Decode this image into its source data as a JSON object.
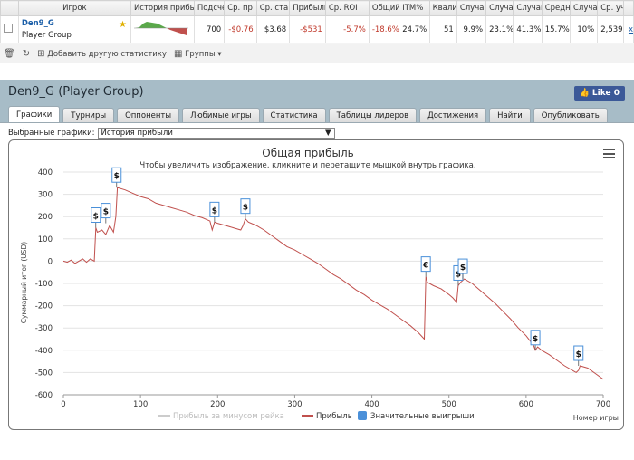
{
  "grid": {
    "headers": [
      "Игрок",
      "История прибыли",
      "Подсчет",
      "Ср. пр",
      "Ср. ста",
      "Прибыль",
      "Ср. ROI",
      "Общий",
      "ITM%",
      "Квали",
      "Случаи",
      "Случа",
      "Случаи",
      "Средн",
      "Случаи",
      "Ср. уч"
    ],
    "row": {
      "player_name": "Den9_G",
      "player_group": "Player Group",
      "count": "700",
      "avg_profit": "-$0.76",
      "avg_stake": "$3.68",
      "profit": "-$531",
      "avg_roi": "-5.7%",
      "total_roi": "-18.6%",
      "itm": "24.7%",
      "quali": "51",
      "c1": "9.9%",
      "c2": "23.1%",
      "c3": "41.3%",
      "avg2": "15.7%",
      "c4": "10%",
      "avg_entrants": "2,539",
      "remove": "x"
    },
    "sparkline": {
      "pos_color": "#5aa84a",
      "neg_color": "#c0504d"
    }
  },
  "toolbar": {
    "add_stat": "Добавить другую статистику",
    "groups": "Группы"
  },
  "panel": {
    "title": "Den9_G (Player Group)",
    "like_label": "Like 0",
    "tabs": [
      "Графики",
      "Турниры",
      "Оппоненты",
      "Любимые игры",
      "Статистика",
      "Таблицы лидеров",
      "Достижения",
      "Найти",
      "Опубликовать"
    ],
    "active_tab": "Графики",
    "selected_charts_label": "Выбранные графики:",
    "selected_chart_value": "История прибыли"
  },
  "chart_data": {
    "type": "line",
    "title": "Общая прибыль",
    "subtitle": "Чтобы увеличить изображение, кликните и перетащите мышкой внутрь графика.",
    "xlabel": "Номер игры",
    "ylabel": "Суммарный итог (USD)",
    "xlim": [
      0,
      700
    ],
    "ylim": [
      -600,
      400
    ],
    "x_ticks": [
      0,
      100,
      200,
      300,
      400,
      500,
      600,
      700
    ],
    "y_ticks": [
      400,
      300,
      200,
      100,
      0,
      -100,
      -200,
      -300,
      -400,
      -500,
      -600
    ],
    "grid": true,
    "legend_position": "bottom",
    "series": [
      {
        "name": "Прибыль за минусом рейка",
        "color": "#cccccc",
        "x": [],
        "y": []
      },
      {
        "name": "Прибыль",
        "color": "#c0504d",
        "x": [
          0,
          5,
          10,
          15,
          20,
          25,
          30,
          35,
          40,
          42,
          44,
          50,
          55,
          60,
          65,
          68,
          70,
          80,
          90,
          100,
          110,
          120,
          130,
          140,
          150,
          160,
          170,
          180,
          190,
          193,
          196,
          200,
          210,
          220,
          230,
          233,
          236,
          240,
          250,
          260,
          270,
          280,
          290,
          300,
          310,
          320,
          330,
          340,
          350,
          360,
          370,
          380,
          390,
          400,
          410,
          420,
          430,
          440,
          450,
          460,
          468,
          470,
          472,
          480,
          490,
          500,
          505,
          510,
          512,
          515,
          520,
          530,
          540,
          550,
          560,
          570,
          580,
          590,
          600,
          610,
          612,
          615,
          620,
          630,
          640,
          650,
          660,
          665,
          668,
          670,
          680,
          690,
          700
        ],
        "y": [
          0,
          -5,
          5,
          -10,
          0,
          10,
          -5,
          10,
          0,
          150,
          130,
          140,
          120,
          160,
          130,
          200,
          330,
          320,
          305,
          290,
          280,
          260,
          250,
          240,
          230,
          220,
          205,
          195,
          180,
          140,
          175,
          170,
          160,
          150,
          140,
          160,
          190,
          175,
          160,
          140,
          115,
          90,
          65,
          50,
          30,
          10,
          -10,
          -35,
          -60,
          -80,
          -105,
          -130,
          -150,
          -175,
          -195,
          -215,
          -240,
          -265,
          -290,
          -320,
          -350,
          -70,
          -95,
          -110,
          -125,
          -150,
          -165,
          -185,
          -110,
          -95,
          -80,
          -100,
          -130,
          -160,
          -190,
          -225,
          -260,
          -300,
          -335,
          -380,
          -400,
          -385,
          -400,
          -420,
          -445,
          -470,
          -490,
          -500,
          -490,
          -470,
          -480,
          -505,
          -530
        ]
      }
    ],
    "big_wins": {
      "name": "Значительные выигрыши",
      "color": "#4a90d9",
      "points": [
        {
          "x": 42,
          "y": 150,
          "label": "$"
        },
        {
          "x": 55,
          "y": 170,
          "label": "$"
        },
        {
          "x": 69,
          "y": 330,
          "label": "$"
        },
        {
          "x": 196,
          "y": 175,
          "label": "$"
        },
        {
          "x": 236,
          "y": 190,
          "label": "$"
        },
        {
          "x": 470,
          "y": -70,
          "label": "€"
        },
        {
          "x": 512,
          "y": -110,
          "label": "$"
        },
        {
          "x": 518,
          "y": -80,
          "label": "$"
        },
        {
          "x": 612,
          "y": -400,
          "label": "$"
        },
        {
          "x": 668,
          "y": -470,
          "label": "$"
        }
      ]
    }
  }
}
